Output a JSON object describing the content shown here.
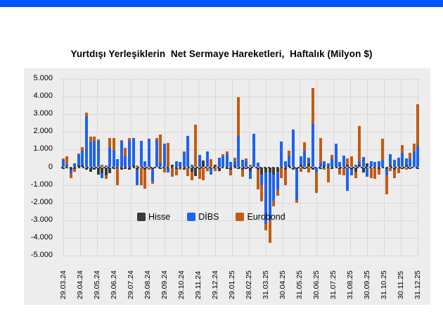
{
  "header": {
    "bar_color": "#0254fb"
  },
  "chart": {
    "title": "Yurtdışı Yerleşiklerin  Net Sermaye Hareketleri,  Haftalık (Milyon $)",
    "y_ticks": [
      "5.000",
      "4.000",
      "3.000",
      "2.000",
      "1.000",
      "0",
      "-1.000",
      "-2.000",
      "-3.000",
      "-4.000",
      "-5.000"
    ],
    "background": "#ededed",
    "gridline_color": "#d9d9d9"
  },
  "chart_data": {
    "type": "bar",
    "stacked": true,
    "title": "Yurtdışı Yerleşiklerin Net Sermaye Hareketleri, Haftalık (Milyon $)",
    "unit": "Milyon $",
    "frequency": "weekly",
    "ylim": [
      -5000,
      5000
    ],
    "y_tick_interval": 1000,
    "legend_position": "inside-bottom-center",
    "x_tick_labels": [
      "29.03.24",
      "29.04.24",
      "29.05.24",
      "29.06.24",
      "29.07.24",
      "29.08.24",
      "29.09.24",
      "29.10.24",
      "29.11.24",
      "29.12.24",
      "29.01.25",
      "28.02.25",
      "31.03.25",
      "30.04.25",
      "31.05.25",
      "30.06.25",
      "31.07.25",
      "31.08.25",
      "30.09.25",
      "31.10.25",
      "30.11.25",
      "31.12.25"
    ],
    "series": [
      {
        "name": "Hisse",
        "color": "#3a3a3a",
        "values": [
          -100,
          -60,
          -150,
          -80,
          100,
          100,
          -150,
          -250,
          -150,
          -400,
          -350,
          -450,
          -350,
          -100,
          0,
          -150,
          -100,
          -150,
          100,
          -150,
          0,
          -150,
          0,
          -100,
          0,
          -100,
          -50,
          0,
          150,
          -100,
          0,
          -150,
          0,
          -250,
          -500,
          -100,
          360,
          0,
          -50,
          150,
          -200,
          0,
          -100,
          -150,
          100,
          -100,
          -150,
          -100,
          -200,
          0,
          -150,
          -400,
          -300,
          -300,
          -400,
          -250,
          0,
          -150,
          100,
          -150,
          -100,
          150,
          -100,
          200,
          -150,
          0,
          -100,
          100,
          0,
          -100,
          0,
          -100,
          -50,
          150,
          -150,
          -250,
          150,
          -300,
          200,
          0,
          0,
          -100,
          0,
          -100,
          100,
          -150,
          0,
          -100,
          150,
          -100,
          0,
          -100
        ]
      },
      {
        "name": "DİBS",
        "color": "#1e63f0",
        "values": [
          420,
          150,
          -180,
          230,
          580,
          850,
          2900,
          1450,
          1500,
          1500,
          -250,
          100,
          1150,
          950,
          450,
          1450,
          600,
          1500,
          1550,
          -850,
          1500,
          350,
          1600,
          -700,
          1550,
          250,
          1350,
          -300,
          0,
          350,
          300,
          800,
          1770,
          150,
          0,
          690,
          0,
          900,
          -350,
          0,
          550,
          620,
          750,
          300,
          250,
          1780,
          400,
          350,
          -450,
          1880,
          250,
          -600,
          -2900,
          -2700,
          -1500,
          -1050,
          1450,
          350,
          550,
          2150,
          -1750,
          450,
          950,
          350,
          2450,
          -300,
          250,
          250,
          200,
          450,
          1280,
          300,
          660,
          -1350,
          -300,
          150,
          200,
          560,
          -550,
          350,
          300,
          350,
          400,
          -350,
          650,
          400,
          550,
          800,
          350,
          500,
          900,
          1200
        ]
      },
      {
        "name": "Eurobond",
        "color": "#c55a11",
        "values": [
          60,
          450,
          -300,
          -160,
          90,
          170,
          200,
          300,
          250,
          50,
          150,
          -200,
          500,
          700,
          -1000,
          100,
          500,
          150,
          0,
          100,
          -1000,
          -1050,
          -150,
          -150,
          100,
          1600,
          -250,
          1380,
          -550,
          -350,
          -150,
          80,
          -500,
          -500,
          2420,
          -550,
          -730,
          -200,
          450,
          -200,
          0,
          100,
          150,
          -300,
          200,
          2170,
          -400,
          150,
          150,
          0,
          -1100,
          -950,
          -350,
          -1300,
          -300,
          -300,
          -600,
          -850,
          300,
          0,
          -150,
          -250,
          450,
          -300,
          2050,
          -1150,
          1400,
          -150,
          -850,
          250,
          70,
          -300,
          -400,
          350,
          600,
          -350,
          1980,
          0,
          0,
          -600,
          -650,
          -300,
          1200,
          -1100,
          -200,
          -450,
          -350,
          450,
          -150,
          300,
          450,
          2350
        ]
      }
    ]
  }
}
